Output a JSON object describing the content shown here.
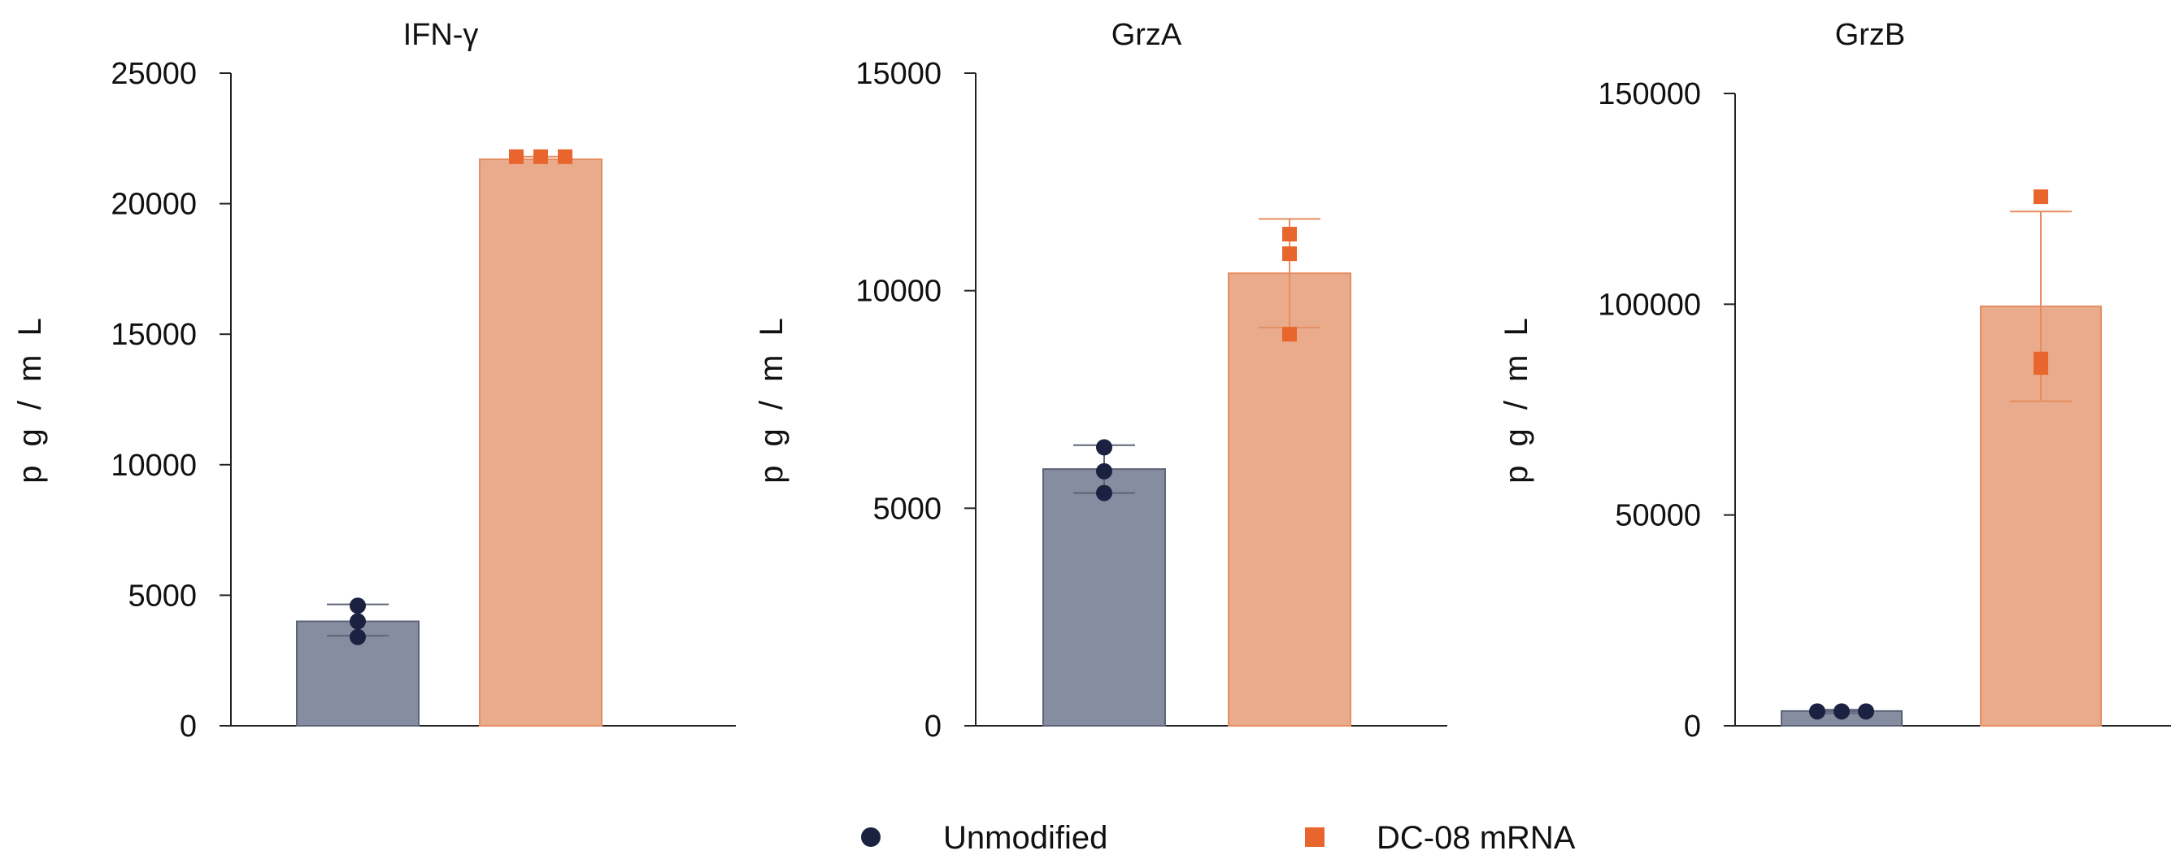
{
  "legend": {
    "unmodified": "Unmodified",
    "dc08": "DC-08 mRNA"
  },
  "colors": {
    "unmodified_bar": "#878da0",
    "unmodified_edge": "#5d6478",
    "unmodified_point": "#1b2140",
    "dc08_bar": "#e9ab8b",
    "dc08_edge": "#e58e62",
    "dc08_point": "#e8662e",
    "axis": "#222222"
  },
  "chart_data": [
    {
      "type": "bar",
      "title": "IFN-γ",
      "ylabel": "p g / m L",
      "ylim": [
        0,
        25000
      ],
      "yticks": [
        0,
        5000,
        10000,
        15000,
        20000,
        25000
      ],
      "ytick_labels": [
        "0",
        "5000",
        "10000",
        "15000",
        "20000",
        "25000"
      ],
      "categories": [
        "Unmodified",
        "DC-08 mRNA"
      ],
      "series": [
        {
          "name": "Unmodified",
          "mean": 4000,
          "error": [
            3450,
            4650
          ],
          "points": [
            3400,
            4000,
            4600
          ]
        },
        {
          "name": "DC-08 mRNA",
          "mean": 21700,
          "error": [
            21700,
            21800
          ],
          "points": [
            21800,
            21800,
            21800
          ]
        }
      ]
    },
    {
      "type": "bar",
      "title": "GrzA",
      "ylabel": "p g / m L",
      "ylim": [
        0,
        15000
      ],
      "yticks": [
        0,
        5000,
        10000,
        15000
      ],
      "ytick_labels": [
        "0",
        "5000",
        "10000",
        "15000"
      ],
      "categories": [
        "Unmodified",
        "DC-08 mRNA"
      ],
      "series": [
        {
          "name": "Unmodified",
          "mean": 5900,
          "error": [
            5350,
            6450
          ],
          "points": [
            5350,
            5850,
            6400
          ]
        },
        {
          "name": "DC-08 mRNA",
          "mean": 10400,
          "error": [
            9150,
            11650
          ],
          "points": [
            9000,
            10850,
            11300
          ]
        }
      ]
    },
    {
      "type": "bar",
      "title": "GrzB",
      "ylabel": "p g / m L",
      "ylim": [
        0,
        150000
      ],
      "yticks": [
        0,
        50000,
        100000,
        150000
      ],
      "ytick_labels": [
        "0",
        "50000",
        "100000",
        "150000"
      ],
      "categories": [
        "Unmodified",
        "DC-08 mRNA"
      ],
      "series": [
        {
          "name": "Unmodified",
          "mean": 3500,
          "error": [
            3000,
            3800
          ],
          "points": [
            3400,
            3400,
            3400
          ]
        },
        {
          "name": "DC-08 mRNA",
          "mean": 99500,
          "error": [
            77000,
            122000
          ],
          "points": [
            85000,
            87000,
            125500
          ]
        }
      ]
    }
  ]
}
